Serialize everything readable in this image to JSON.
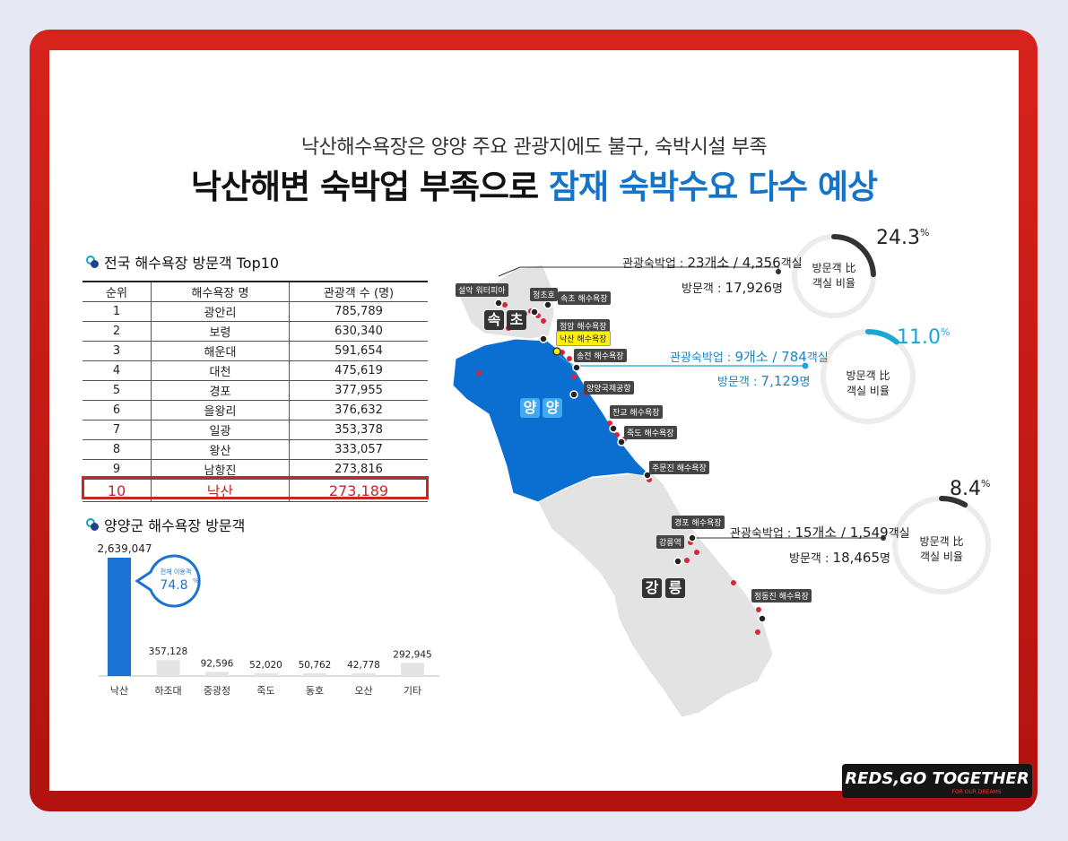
{
  "subtitle": "낙산해수욕장은 양양 주요 관광지에도 불구, 숙박시설 부족",
  "title_main": "낙산해변 숙박업 부족으로 ",
  "title_highlight": "잠재 숙박수요 다수 예상",
  "section_top10": "전국 해수욕장 방문객 Top10",
  "section_yangyang": "양양군 해수욕장 방문객",
  "table": {
    "headers": [
      "순위",
      "해수욕장 명",
      "관광객 수 (명)"
    ],
    "rows": [
      [
        "1",
        "광안리",
        "785,789"
      ],
      [
        "2",
        "보령",
        "630,340"
      ],
      [
        "3",
        "해운대",
        "591,654"
      ],
      [
        "4",
        "대천",
        "475,619"
      ],
      [
        "5",
        "경포",
        "377,955"
      ],
      [
        "6",
        "을왕리",
        "376,632"
      ],
      [
        "7",
        "일광",
        "353,378"
      ],
      [
        "8",
        "왕산",
        "333,057"
      ],
      [
        "9",
        "남항진",
        "273,816"
      ],
      [
        "10",
        "낙산",
        "273,189"
      ]
    ]
  },
  "chart_data": {
    "type": "bar",
    "title": "양양군 해수욕장 방문객",
    "categories": [
      "낙산",
      "하조대",
      "중광정",
      "죽도",
      "동호",
      "오산",
      "기타"
    ],
    "values": [
      2639047,
      357128,
      92596,
      52020,
      50762,
      42778,
      292945
    ],
    "value_labels": [
      "2,639,047",
      "357,128",
      "92,596",
      "52,020",
      "50,762",
      "42,778",
      "292,945"
    ],
    "highlight_index": 0,
    "colors": {
      "highlight": "#1a73d2",
      "other": "#e4e4e4"
    },
    "callout_label": "전체 이용객",
    "callout_value": "74.8",
    "callout_unit": "%"
  },
  "map": {
    "cities": {
      "sokcho": [
        "속",
        "초"
      ],
      "yangyang": [
        "양",
        "양"
      ],
      "gangneung": [
        "강",
        "릉"
      ]
    },
    "labels": [
      "설악 워터피아",
      "청초호",
      "속초 해수욕장",
      "정암 해수욕장",
      "낙산 해수욕장",
      "송전 해수욕장",
      "양양국제공항",
      "잔교 해수욕장",
      "죽도 해수욕장",
      "주문진 해수욕장",
      "경포 해수욕장",
      "강릉역",
      "정동진 해수욕장"
    ],
    "colors": {
      "yangyang": "#0b6fd1",
      "other": "#e3e3e3",
      "dots": "#d6263c"
    }
  },
  "regions": [
    {
      "lodging_label": "관광숙박업 : ",
      "lodging": "23개소 / 4,356",
      "lodging_unit": "객실",
      "visitors_label": "방문객 : ",
      "visitors": "17,926",
      "visitors_unit": "명",
      "ratio": "24.3",
      "ratio_unit": "%",
      "ratio_value": 0.243,
      "ratio_label": [
        "방문객 比",
        "객실 비율"
      ],
      "color": "#333333"
    },
    {
      "lodging_label": "관광숙박업 : ",
      "lodging": "9개소 / 784",
      "lodging_unit": "객실",
      "visitors_label": "방문객 : ",
      "visitors": "7,129",
      "visitors_unit": "명",
      "ratio": "11.0",
      "ratio_unit": "%",
      "ratio_value": 0.11,
      "ratio_label": [
        "방문객 比",
        "객실 비율"
      ],
      "color": "#1aa6d6"
    },
    {
      "lodging_label": "관광숙박업 : ",
      "lodging": "15개소 / 1,549",
      "lodging_unit": "객실",
      "visitors_label": "방문객 : ",
      "visitors": "18,465",
      "visitors_unit": "명",
      "ratio": "8.4",
      "ratio_unit": "%",
      "ratio_value": 0.084,
      "ratio_label": [
        "방문객 比",
        "객실 비율"
      ],
      "color": "#333333"
    }
  ],
  "logo": {
    "text": "REDS,GO TOGETHER",
    "tagline": "FOR OUR DREAMS"
  }
}
